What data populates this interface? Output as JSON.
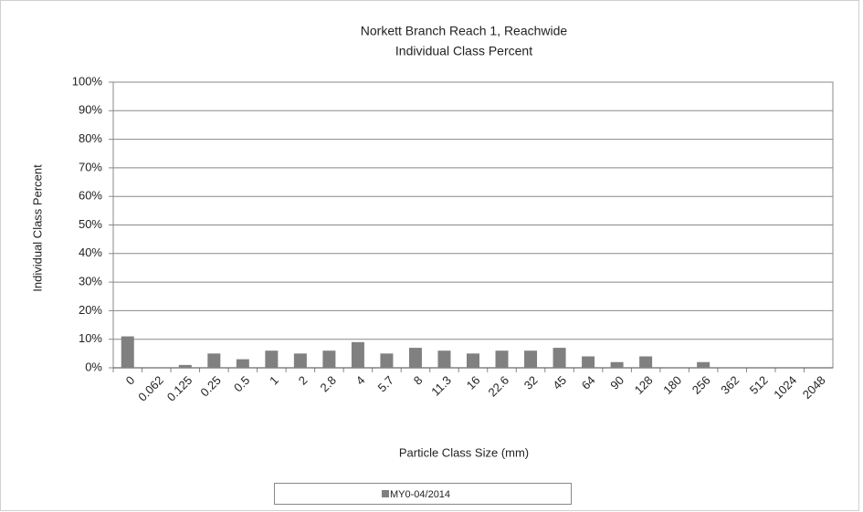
{
  "chart_data": {
    "type": "bar",
    "title": "Norkett Branch Reach 1, Reachwide",
    "subtitle": "Individual Class Percent",
    "x_label": "Particle Class Size (mm)",
    "y_label": "Individual Class Percent",
    "categories": [
      "0",
      "0.062",
      "0.125",
      "0.25",
      "0.5",
      "1",
      "2",
      "2.8",
      "4",
      "5.7",
      "8",
      "11.3",
      "16",
      "22.6",
      "32",
      "45",
      "64",
      "90",
      "128",
      "180",
      "256",
      "362",
      "512",
      "1024",
      "2048"
    ],
    "series": [
      {
        "name": "MY0-04/2014",
        "color": "#808080",
        "values": [
          11,
          0,
          1,
          5,
          3,
          6,
          5,
          6,
          9,
          5,
          7,
          6,
          5,
          6,
          6,
          7,
          4,
          2,
          4,
          0,
          2,
          0,
          0,
          0,
          0
        ]
      }
    ],
    "ylim": [
      0,
      100
    ],
    "yticks": [
      {
        "value": 0,
        "label": "0%"
      },
      {
        "value": 10,
        "label": "10%"
      },
      {
        "value": 20,
        "label": "20%"
      },
      {
        "value": 30,
        "label": "30%"
      },
      {
        "value": 40,
        "label": "40%"
      },
      {
        "value": 50,
        "label": "50%"
      },
      {
        "value": 60,
        "label": "60%"
      },
      {
        "value": 70,
        "label": "70%"
      },
      {
        "value": 80,
        "label": "80%"
      },
      {
        "value": 90,
        "label": "90%"
      },
      {
        "value": 100,
        "label": "100%"
      }
    ],
    "grid": true,
    "legend": "bottom"
  }
}
